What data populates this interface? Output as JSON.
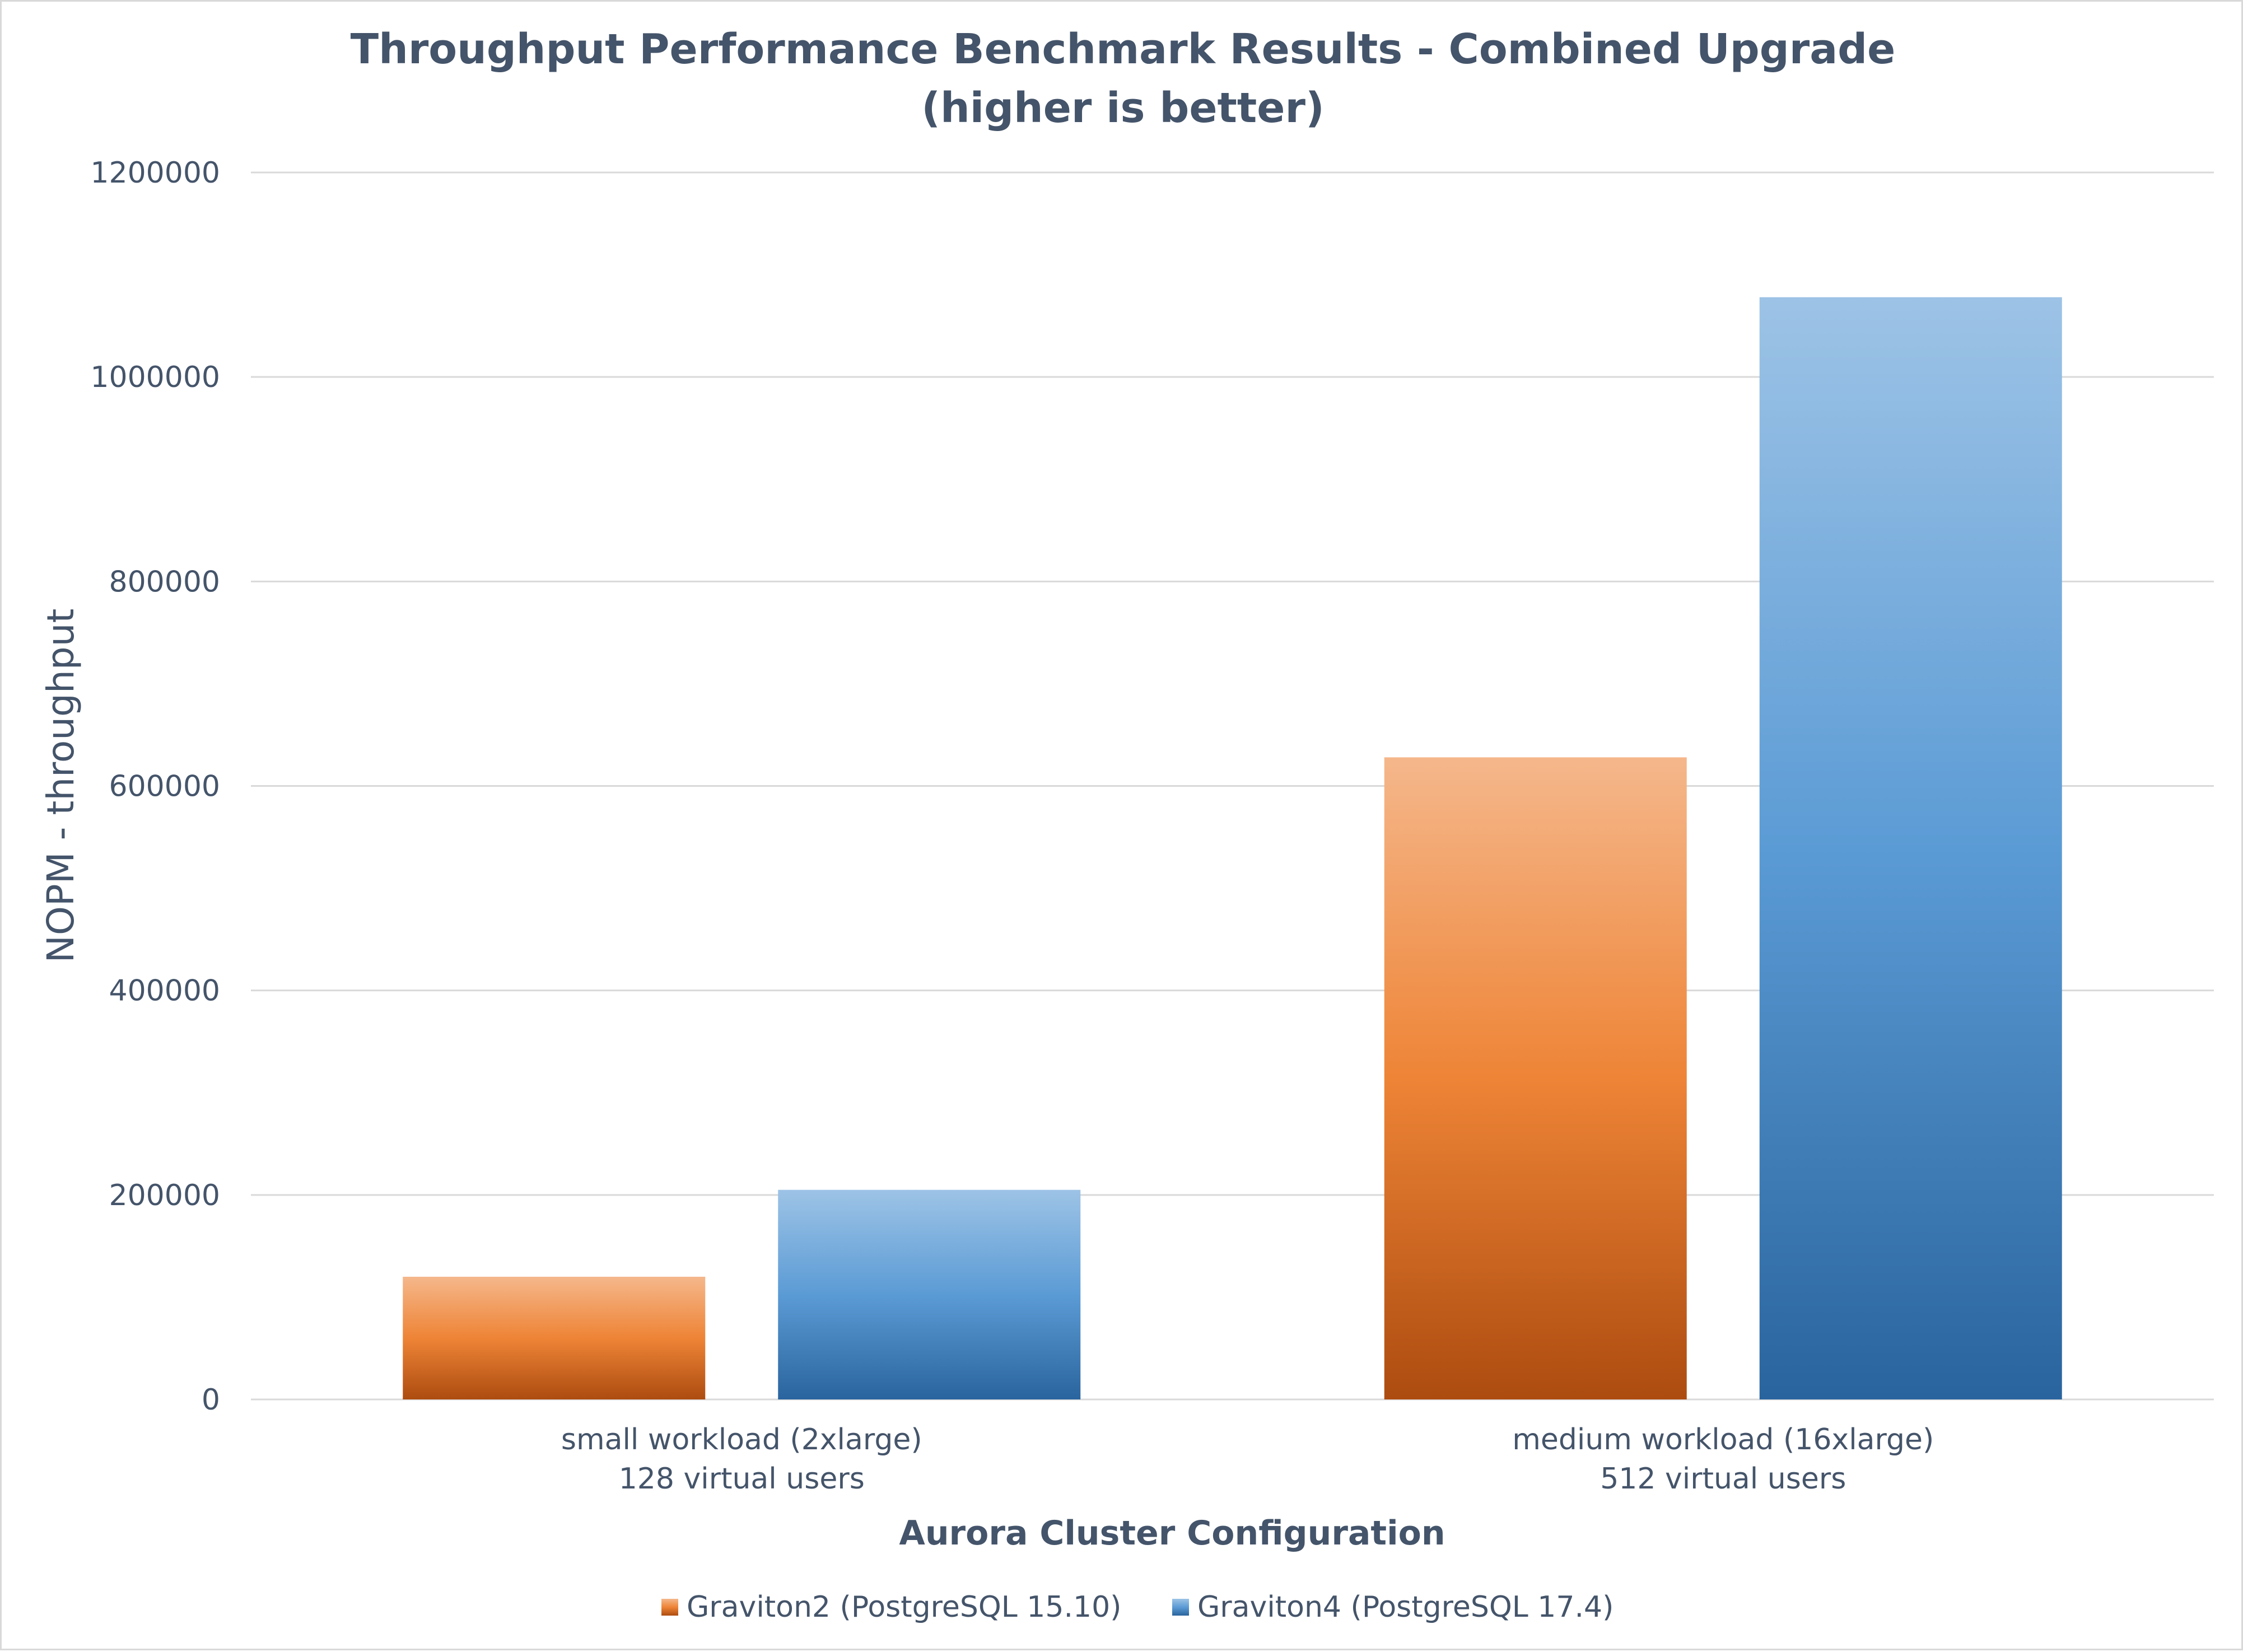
{
  "chart_data": {
    "type": "bar",
    "title": "Throughput Performance Benchmark Results  - Combined Upgrade",
    "subtitle": "(higher is better)",
    "xlabel": "Aurora Cluster Configuration",
    "ylabel": "NOPM - throughput",
    "ylim": [
      0,
      1200000
    ],
    "yticks": [
      "0",
      "200000",
      "400000",
      "600000",
      "800000",
      "1000000",
      "1200000"
    ],
    "grid": true,
    "legend_position": "bottom",
    "categories": [
      {
        "line1": "small workload (2xlarge)",
        "line2": "128 virtual users"
      },
      {
        "line1": "medium workload (16xlarge)",
        "line2": "512 virtual users"
      }
    ],
    "series": [
      {
        "name": "Graviton2 (PostgreSQL 15.10)",
        "values": [
          120000,
          628000
        ],
        "color_top": "#f5b78b",
        "color_mid": "#ee8436",
        "color_bottom": "#ad4c10"
      },
      {
        "name": "Graviton4 (PostgreSQL 17.4)",
        "values": [
          205000,
          1078000
        ],
        "color_top": "#9dc3e6",
        "color_mid": "#5b9bd5",
        "color_bottom": "#2a649e"
      }
    ]
  }
}
